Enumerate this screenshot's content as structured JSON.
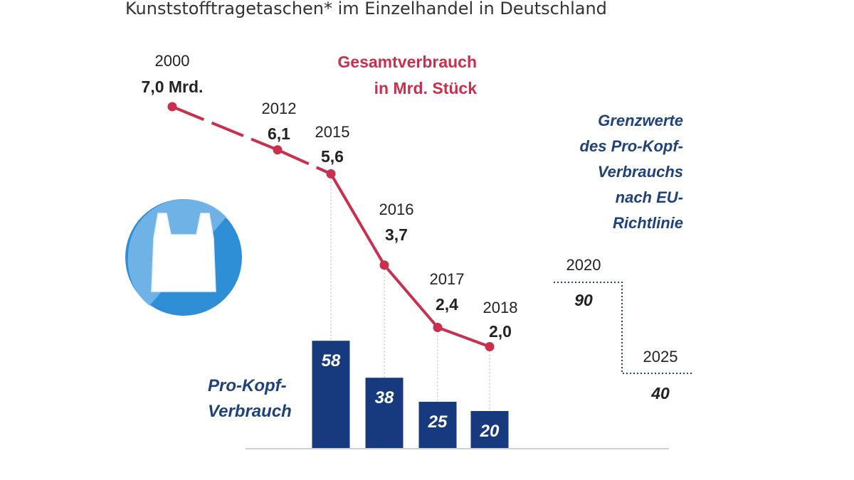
{
  "subtitle": "Kunststofftragetaschen* im Einzelhandel in Deutschland",
  "colors": {
    "line": "#c8304d",
    "bar": "#173a7e",
    "bar_text": "#ffffff",
    "blue_text": "#1f4279",
    "grid": "#c9c9c9",
    "baseline": "#cfcfcf",
    "icon_bg": "#2f8fd6",
    "icon_bg_light": "#7ab8e8",
    "icon_bag": "#ffffff"
  },
  "icon": "plastic-bag-icon",
  "chart_data": [
    {
      "type": "line",
      "title": "Gesamtverbrauch in Mrd. Stück",
      "title_lines": [
        "Gesamtverbrauch",
        "in Mrd. Stück"
      ],
      "x": [
        2000,
        2012,
        2015,
        2016,
        2017,
        2018
      ],
      "values": [
        7.0,
        6.1,
        5.6,
        3.7,
        2.4,
        2.0
      ],
      "value_labels": [
        "7,0 Mrd.",
        "6,1",
        "5,6",
        "3,7",
        "2,4",
        "2,0"
      ],
      "year_labels": [
        "2000",
        "2012",
        "2015",
        "2016",
        "2017",
        "2018"
      ],
      "dashed_segments": [
        0,
        1
      ]
    },
    {
      "type": "bar",
      "label": "Pro-Kopf-Verbrauch",
      "label_lines": [
        "Pro-Kopf-",
        "Verbrauch"
      ],
      "categories": [
        "2015",
        "2016",
        "2017",
        "2018"
      ],
      "values": [
        58,
        38,
        25,
        20
      ]
    },
    {
      "type": "line",
      "label": "Grenzwerte des Pro-Kopf-Verbrauchs nach EU-Richtlinie",
      "label_lines": [
        "Grenzwerte",
        "des Pro-Kopf-",
        "Verbrauchs",
        "nach EU-",
        "Richtlinie"
      ],
      "style": "dotted-step",
      "x": [
        2020,
        2025
      ],
      "year_labels": [
        "2020",
        "2025"
      ],
      "values": [
        90,
        40
      ],
      "value_labels": [
        "90",
        "40"
      ]
    }
  ]
}
